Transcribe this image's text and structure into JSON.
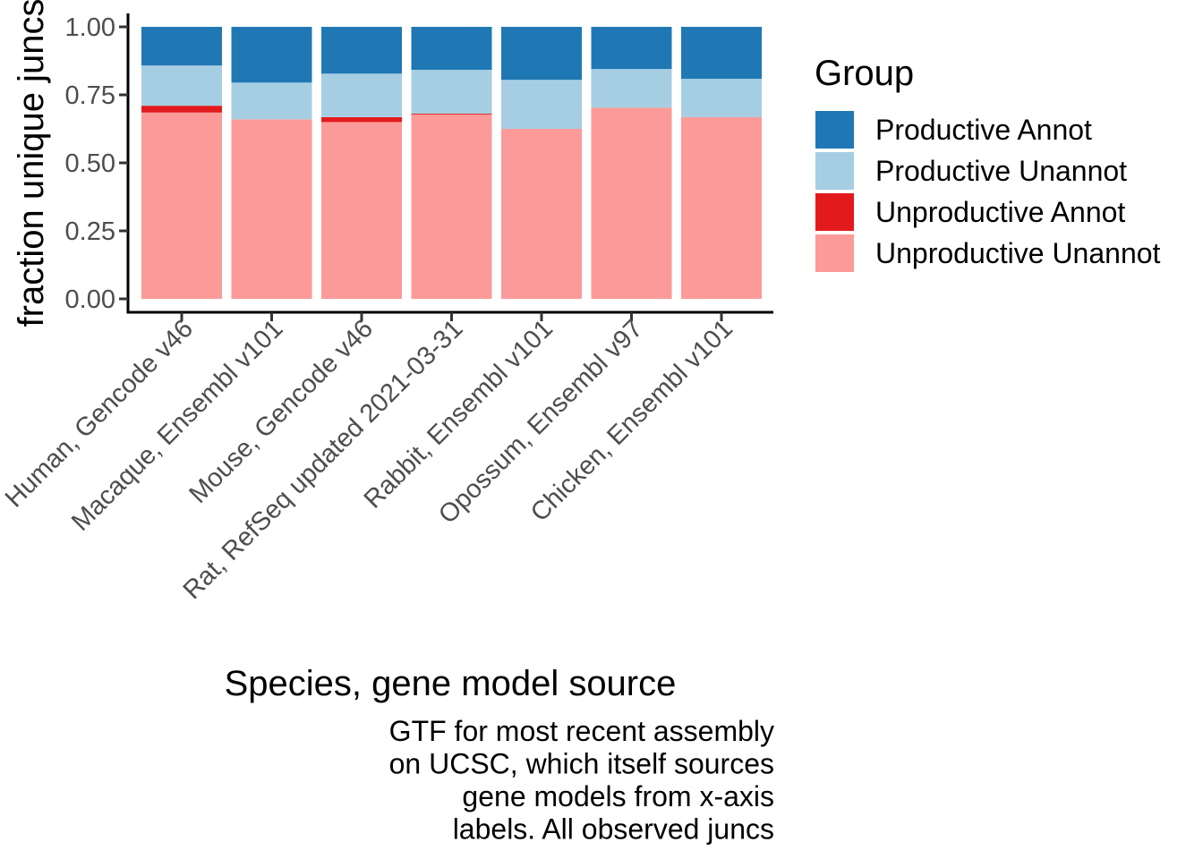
{
  "chart_data": {
    "type": "bar",
    "stacked": true,
    "categories": [
      "Human, Gencode v46",
      "Macaque, Ensembl v101",
      "Mouse, Gencode v46",
      "Rat, RefSeq updated 2021-03-31",
      "Rabbit, Ensembl v101",
      "Opossum, Ensembl v97",
      "Chicken, Ensembl v101"
    ],
    "series": [
      {
        "name": "Unproductive Unannot",
        "color": "#FB9A99",
        "values": [
          0.685,
          0.66,
          0.65,
          0.678,
          0.625,
          0.703,
          0.668
        ]
      },
      {
        "name": "Unproductive Annot",
        "color": "#E31A1C",
        "values": [
          0.025,
          0.0,
          0.018,
          0.003,
          0.0,
          0.0,
          0.0
        ]
      },
      {
        "name": "Productive Unannot",
        "color": "#A6CEE3",
        "values": [
          0.148,
          0.135,
          0.16,
          0.161,
          0.18,
          0.142,
          0.141
        ]
      },
      {
        "name": "Productive Annot",
        "color": "#1F78B4",
        "values": [
          0.142,
          0.205,
          0.172,
          0.158,
          0.195,
          0.155,
          0.191
        ]
      }
    ],
    "legend": {
      "title": "Group",
      "position": "right",
      "order": [
        "Productive Annot",
        "Productive Unannot",
        "Unproductive Annot",
        "Unproductive Unannot"
      ]
    },
    "xlabel": "Species, gene model source",
    "ylabel": "fraction unique juncs",
    "ylim": [
      0,
      1
    ],
    "yticks": [
      "0.00",
      "0.25",
      "0.50",
      "0.75",
      "1.00"
    ],
    "ytick_values": [
      0,
      0.25,
      0.5,
      0.75,
      1.0
    ],
    "grid": false,
    "caption_lines": [
      "GTF for most recent assembly",
      "on UCSC, which itself sources",
      "gene models from x-axis",
      "labels. All observed juncs"
    ]
  }
}
